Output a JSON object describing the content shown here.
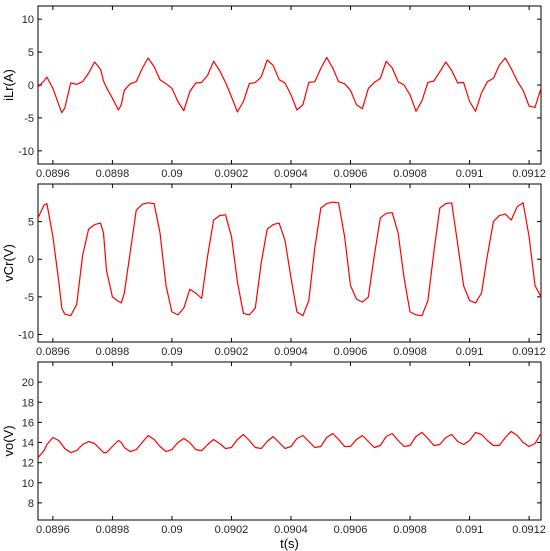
{
  "chart_data": [
    {
      "type": "line",
      "ylabel": "iLr(A)",
      "xlabel": "",
      "xlim": [
        0.08955,
        0.09124
      ],
      "ylim": [
        -12,
        12
      ],
      "xticks": [
        0.0896,
        0.0898,
        0.09,
        0.0902,
        0.0904,
        0.0906,
        0.0908,
        0.091,
        0.0912
      ],
      "xtick_labels": [
        "0.0896",
        "0.0898",
        "0.09",
        "0.0902",
        "0.0904",
        "0.0906",
        "0.0908",
        "0.091",
        "0.0912"
      ],
      "yticks": [
        -10,
        -5,
        0,
        5,
        10
      ],
      "ytick_labels": [
        "-10",
        "-5",
        "0",
        "5",
        "10"
      ],
      "series": [
        {
          "color": "#ff0000",
          "x": [
            0.08955,
            0.08957,
            0.08958,
            0.0896,
            0.08962,
            0.08963,
            0.08964,
            0.08966,
            0.08968,
            0.0897,
            0.08972,
            0.08974,
            0.08976,
            0.08977,
            0.08978,
            0.0898,
            0.08982,
            0.08983,
            0.08984,
            0.08986,
            0.08988,
            0.0899,
            0.08992,
            0.08994,
            0.08996,
            0.08998,
            0.09,
            0.09002,
            0.09004,
            0.09006,
            0.09008,
            0.0901,
            0.09012,
            0.09014,
            0.09016,
            0.09018,
            0.0902,
            0.09022,
            0.09024,
            0.09026,
            0.09028,
            0.0903,
            0.09032,
            0.09034,
            0.09036,
            0.09038,
            0.0904,
            0.09042,
            0.09044,
            0.09046,
            0.09048,
            0.0905,
            0.09052,
            0.09054,
            0.09056,
            0.09058,
            0.0906,
            0.09062,
            0.09064,
            0.09066,
            0.09068,
            0.0907,
            0.09072,
            0.09074,
            0.09076,
            0.09078,
            0.0908,
            0.09082,
            0.09084,
            0.09086,
            0.09088,
            0.0909,
            0.09092,
            0.09094,
            0.09096,
            0.09098,
            0.091,
            0.09102,
            0.09104,
            0.09106,
            0.09108,
            0.0911,
            0.09112,
            0.09114,
            0.09116,
            0.09118,
            0.0912,
            0.09122,
            0.09124
          ],
          "y": [
            -0.3,
            0.6,
            1.2,
            -0.5,
            -3.0,
            -4.2,
            -3.5,
            0.3,
            0.1,
            0.5,
            1.8,
            3.5,
            2.4,
            0.6,
            -0.4,
            -2.0,
            -3.8,
            -3.0,
            -0.8,
            0.2,
            0.5,
            2.5,
            4.1,
            2.8,
            0.8,
            0.2,
            -0.5,
            -2.5,
            -3.9,
            -1.0,
            0.3,
            0.4,
            1.5,
            3.6,
            2.2,
            0.4,
            -1.8,
            -4.1,
            -2.5,
            0.2,
            0.4,
            1.2,
            3.8,
            3.0,
            0.8,
            0.3,
            -1.5,
            -3.8,
            -3.0,
            0.4,
            0.5,
            2.5,
            4.2,
            2.6,
            0.5,
            0.2,
            -0.8,
            -3.0,
            -3.6,
            -0.5,
            0.4,
            1.0,
            3.6,
            2.6,
            0.5,
            0.0,
            -1.5,
            -4.0,
            -2.4,
            0.4,
            0.6,
            2.0,
            3.5,
            2.2,
            0.3,
            0.4,
            -2.5,
            -4.0,
            -1.2,
            0.5,
            1.0,
            3.0,
            4.1,
            2.5,
            0.6,
            -0.8,
            -3.2,
            -3.4,
            -0.5
          ]
        }
      ]
    },
    {
      "type": "line",
      "ylabel": "vCr(V)",
      "xlabel": "",
      "xlim": [
        0.08955,
        0.09124
      ],
      "ylim": [
        -11,
        10
      ],
      "xticks": [
        0.0896,
        0.0898,
        0.09,
        0.0902,
        0.0904,
        0.0906,
        0.0908,
        0.091,
        0.0912
      ],
      "xtick_labels": [
        "0.0896",
        "0.0898",
        "0.09",
        "0.0902",
        "0.0904",
        "0.0906",
        "0.0908",
        "0.091",
        "0.0912"
      ],
      "yticks": [
        -10,
        -5,
        0,
        5
      ],
      "ytick_labels": [
        "-10",
        "-5",
        "0",
        "5"
      ],
      "series": [
        {
          "color": "#ff0000",
          "x": [
            0.08955,
            0.08957,
            0.08958,
            0.0896,
            0.08962,
            0.08963,
            0.08964,
            0.08966,
            0.08968,
            0.0897,
            0.08972,
            0.08974,
            0.08976,
            0.08977,
            0.08978,
            0.0898,
            0.08982,
            0.08983,
            0.08984,
            0.08986,
            0.08988,
            0.0899,
            0.08992,
            0.08994,
            0.08996,
            0.08998,
            0.09,
            0.09002,
            0.09004,
            0.09006,
            0.09008,
            0.0901,
            0.09012,
            0.09014,
            0.09016,
            0.09018,
            0.0902,
            0.09022,
            0.09024,
            0.09026,
            0.09028,
            0.0903,
            0.09032,
            0.09034,
            0.09036,
            0.09038,
            0.0904,
            0.09042,
            0.09044,
            0.09046,
            0.09048,
            0.0905,
            0.09052,
            0.09054,
            0.09056,
            0.09058,
            0.0906,
            0.09062,
            0.09064,
            0.09066,
            0.09068,
            0.0907,
            0.09072,
            0.09074,
            0.09076,
            0.09078,
            0.0908,
            0.09082,
            0.09084,
            0.09086,
            0.09088,
            0.0909,
            0.09092,
            0.09094,
            0.09096,
            0.09098,
            0.091,
            0.09102,
            0.09104,
            0.09106,
            0.09108,
            0.0911,
            0.09112,
            0.09114,
            0.09116,
            0.09118,
            0.0912,
            0.09122,
            0.09124
          ],
          "y": [
            5.5,
            7.2,
            7.4,
            3.0,
            -3.0,
            -6.5,
            -7.3,
            -7.5,
            -6.0,
            0.5,
            4.0,
            4.6,
            4.8,
            3.5,
            -1.5,
            -5.0,
            -5.6,
            -5.8,
            -4.5,
            1.0,
            6.5,
            7.3,
            7.5,
            7.4,
            3.5,
            -3.5,
            -7.0,
            -7.4,
            -6.5,
            -4.0,
            -4.5,
            -5.2,
            0.5,
            5.2,
            5.8,
            5.9,
            3.0,
            -3.0,
            -7.2,
            -7.4,
            -6.5,
            -0.5,
            4.0,
            4.6,
            4.8,
            2.5,
            -2.5,
            -7.0,
            -7.5,
            -5.5,
            1.5,
            6.8,
            7.4,
            7.6,
            7.5,
            3.0,
            -3.5,
            -5.3,
            -5.7,
            -5.0,
            0.5,
            5.5,
            6.1,
            6.2,
            3.5,
            -2.5,
            -7.0,
            -7.4,
            -7.5,
            -5.5,
            1.0,
            6.8,
            7.4,
            7.5,
            2.0,
            -3.5,
            -5.5,
            -5.8,
            -4.5,
            0.5,
            5.0,
            5.8,
            6.0,
            5.2,
            7.0,
            7.5,
            3.0,
            -3.5,
            -5.0
          ]
        }
      ]
    },
    {
      "type": "line",
      "ylabel": "vo(V)",
      "xlabel": "t(s)",
      "xlim": [
        0.08955,
        0.09124
      ],
      "ylim": [
        6.3,
        22
      ],
      "xticks": [
        0.0896,
        0.0898,
        0.09,
        0.0902,
        0.0904,
        0.0906,
        0.0908,
        0.091,
        0.0912
      ],
      "xtick_labels": [
        "0.0896",
        "0.0898",
        "0.09",
        "0.0902",
        "0.0904",
        "0.0906",
        "0.0908",
        "0.091",
        "0.0912"
      ],
      "yticks": [
        8,
        10,
        12,
        14,
        16,
        18,
        20
      ],
      "ytick_labels": [
        "8",
        "10",
        "12",
        "14",
        "16",
        "18",
        "20"
      ],
      "series": [
        {
          "color": "#ff0000",
          "x": [
            0.08955,
            0.08957,
            0.08958,
            0.0896,
            0.08962,
            0.08963,
            0.08964,
            0.08966,
            0.08968,
            0.0897,
            0.08972,
            0.08974,
            0.08976,
            0.08977,
            0.08978,
            0.0898,
            0.08982,
            0.08983,
            0.08984,
            0.08986,
            0.08988,
            0.0899,
            0.08992,
            0.08994,
            0.08996,
            0.08998,
            0.09,
            0.09002,
            0.09004,
            0.09006,
            0.09008,
            0.0901,
            0.09012,
            0.09014,
            0.09016,
            0.09018,
            0.0902,
            0.09022,
            0.09024,
            0.09026,
            0.09028,
            0.0903,
            0.09032,
            0.09034,
            0.09036,
            0.09038,
            0.0904,
            0.09042,
            0.09044,
            0.09046,
            0.09048,
            0.0905,
            0.09052,
            0.09054,
            0.09056,
            0.09058,
            0.0906,
            0.09062,
            0.09064,
            0.09066,
            0.09068,
            0.0907,
            0.09072,
            0.09074,
            0.09076,
            0.09078,
            0.0908,
            0.09082,
            0.09084,
            0.09086,
            0.09088,
            0.0909,
            0.09092,
            0.09094,
            0.09096,
            0.09098,
            0.091,
            0.09102,
            0.09104,
            0.09106,
            0.09108,
            0.0911,
            0.09112,
            0.09114,
            0.09116,
            0.09118,
            0.0912,
            0.09122,
            0.09124
          ],
          "y": [
            12.5,
            13.2,
            13.8,
            14.5,
            14.2,
            13.8,
            13.4,
            13.0,
            13.2,
            13.8,
            14.1,
            13.9,
            13.3,
            13.0,
            13.0,
            13.6,
            14.2,
            14.0,
            13.5,
            13.1,
            13.3,
            14.0,
            14.7,
            14.3,
            13.6,
            13.1,
            13.3,
            14.0,
            14.4,
            14.0,
            13.3,
            13.2,
            13.8,
            14.3,
            13.9,
            13.4,
            13.5,
            14.3,
            14.8,
            14.2,
            13.5,
            13.4,
            14.1,
            14.6,
            14.0,
            13.4,
            13.6,
            14.4,
            14.7,
            14.1,
            13.5,
            13.6,
            14.5,
            14.9,
            14.3,
            13.6,
            13.6,
            14.3,
            14.7,
            14.1,
            13.5,
            13.7,
            14.6,
            14.9,
            14.2,
            13.6,
            13.7,
            14.6,
            15.0,
            14.4,
            13.7,
            13.8,
            14.5,
            14.8,
            14.1,
            13.8,
            14.2,
            15.0,
            14.8,
            14.2,
            13.7,
            13.7,
            14.5,
            15.1,
            14.7,
            14.0,
            13.6,
            13.9,
            14.9
          ]
        }
      ]
    }
  ]
}
